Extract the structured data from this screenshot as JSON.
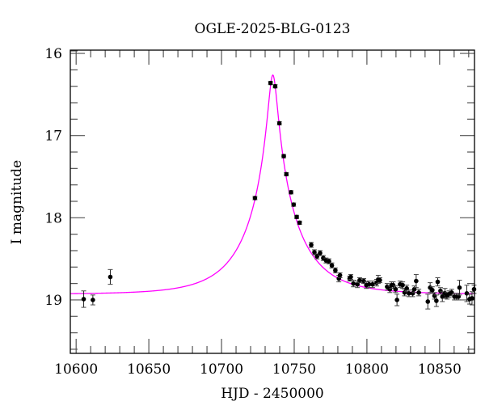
{
  "chart_data": {
    "type": "scatter",
    "title": "OGLE-2025-BLG-0123",
    "xlabel": "HJD - 2450000",
    "ylabel": "I magnitude",
    "xlim": [
      10596,
      10874
    ],
    "ylim": [
      19.65,
      15.96
    ],
    "y_inverted": true,
    "x_ticks": [
      10600,
      10650,
      10700,
      10750,
      10800,
      10850
    ],
    "y_ticks": [
      16,
      17,
      18,
      19
    ],
    "grid": false,
    "colors": {
      "points": "#000000",
      "model": "#ff00ff"
    },
    "series": [
      {
        "kind": "points-with-errorbars",
        "t": [
          10605.2,
          10611.5,
          10623.5,
          10723,
          10733.7,
          10736.9,
          10739.8,
          10742.8,
          10744.6,
          10747.8,
          10749.6,
          10751.7,
          10753.7,
          10761.7,
          10763.9,
          10765.7,
          10767.8,
          10770,
          10771.9,
          10773.9,
          10775.9,
          10778.3,
          10780.7,
          10781.5,
          10788.1,
          10788.9,
          10790.7,
          10793.5,
          10795,
          10797.8,
          10799.6,
          10801.5,
          10803.9,
          10806.7,
          10807.8,
          10808.9,
          10813.9,
          10815.8,
          10816.9,
          10818.1,
          10819.7,
          10820.7,
          10822.8,
          10824.6,
          10825.9,
          10827.4,
          10828.9,
          10831.5,
          10832.6,
          10833.9,
          10835.7,
          10841.9,
          10843.5,
          10845,
          10846.5,
          10847.8,
          10848.7,
          10850.6,
          10851.9,
          10853.7,
          10855.2,
          10856.5,
          10858.3,
          10860.2,
          10861.7,
          10863,
          10863.7,
          10868.7,
          10870.6,
          10872.3,
          10873.7
        ],
        "mag": [
          18.99,
          19.0,
          18.72,
          17.76,
          16.36,
          16.4,
          16.85,
          17.25,
          17.47,
          17.69,
          17.84,
          17.99,
          18.06,
          18.33,
          18.42,
          18.47,
          18.43,
          18.49,
          18.52,
          18.53,
          18.58,
          18.64,
          18.74,
          18.7,
          18.74,
          18.72,
          18.8,
          18.81,
          18.76,
          18.77,
          18.82,
          18.81,
          18.81,
          18.79,
          18.75,
          18.76,
          18.84,
          18.87,
          18.82,
          18.82,
          18.87,
          19.0,
          18.81,
          18.82,
          18.91,
          18.86,
          18.92,
          18.92,
          18.87,
          18.77,
          18.91,
          19.02,
          18.85,
          18.88,
          18.95,
          19.01,
          18.78,
          18.89,
          18.96,
          18.92,
          18.95,
          18.93,
          18.91,
          18.96,
          18.96,
          18.96,
          18.85,
          18.92,
          18.99,
          18.98,
          18.87
        ],
        "err": [
          0.1,
          0.06,
          0.09,
          0.02,
          0.02,
          0.02,
          0.02,
          0.02,
          0.02,
          0.02,
          0.02,
          0.02,
          0.02,
          0.03,
          0.03,
          0.03,
          0.03,
          0.03,
          0.03,
          0.03,
          0.03,
          0.03,
          0.04,
          0.03,
          0.03,
          0.03,
          0.04,
          0.04,
          0.03,
          0.03,
          0.04,
          0.04,
          0.04,
          0.04,
          0.05,
          0.03,
          0.04,
          0.04,
          0.04,
          0.04,
          0.04,
          0.07,
          0.04,
          0.04,
          0.04,
          0.04,
          0.04,
          0.04,
          0.04,
          0.08,
          0.04,
          0.09,
          0.06,
          0.04,
          0.04,
          0.07,
          0.05,
          0.04,
          0.06,
          0.06,
          0.04,
          0.04,
          0.04,
          0.04,
          0.04,
          0.04,
          0.09,
          0.1,
          0.06,
          0.08,
          0.05
        ]
      },
      {
        "kind": "model-curve",
        "model": "PSPL",
        "t0": 10735.3,
        "u0": 0.086,
        "tE": 35,
        "I_base": 18.93
      }
    ]
  }
}
